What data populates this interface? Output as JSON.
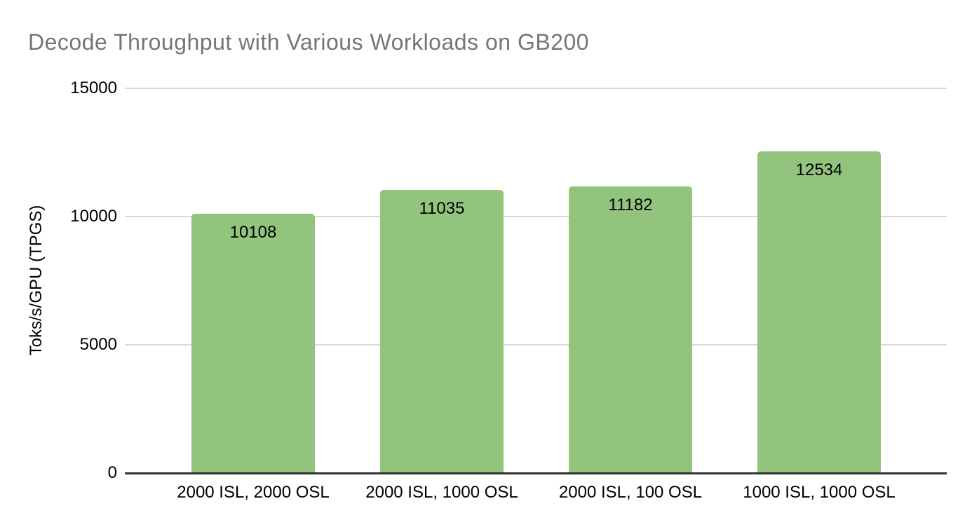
{
  "title": "Decode Throughput with Various Workloads on GB200",
  "chart_data": {
    "type": "bar",
    "title": "Decode Throughput with Various Workloads on GB200",
    "categories": [
      "2000 ISL, 2000 OSL",
      "2000 ISL, 1000 OSL",
      "2000 ISL, 100 OSL",
      "1000 ISL, 1000 OSL"
    ],
    "values": [
      10108,
      11035,
      11182,
      12534
    ],
    "value_labels": [
      "10108",
      "11035",
      "11182",
      "12534"
    ],
    "xlabel": "",
    "ylabel": "Toks/s/GPU (TPGS)",
    "ylim": [
      0,
      15000
    ],
    "yticks": [
      0,
      5000,
      10000,
      15000
    ],
    "grid": true,
    "legend": "none"
  },
  "colors": {
    "background": "#ffffff",
    "title_text": "#757575",
    "bar_fill": "#93c47d",
    "gridline": "#d9d9d9",
    "axis_line": "#333333",
    "label_text": "#000000"
  }
}
